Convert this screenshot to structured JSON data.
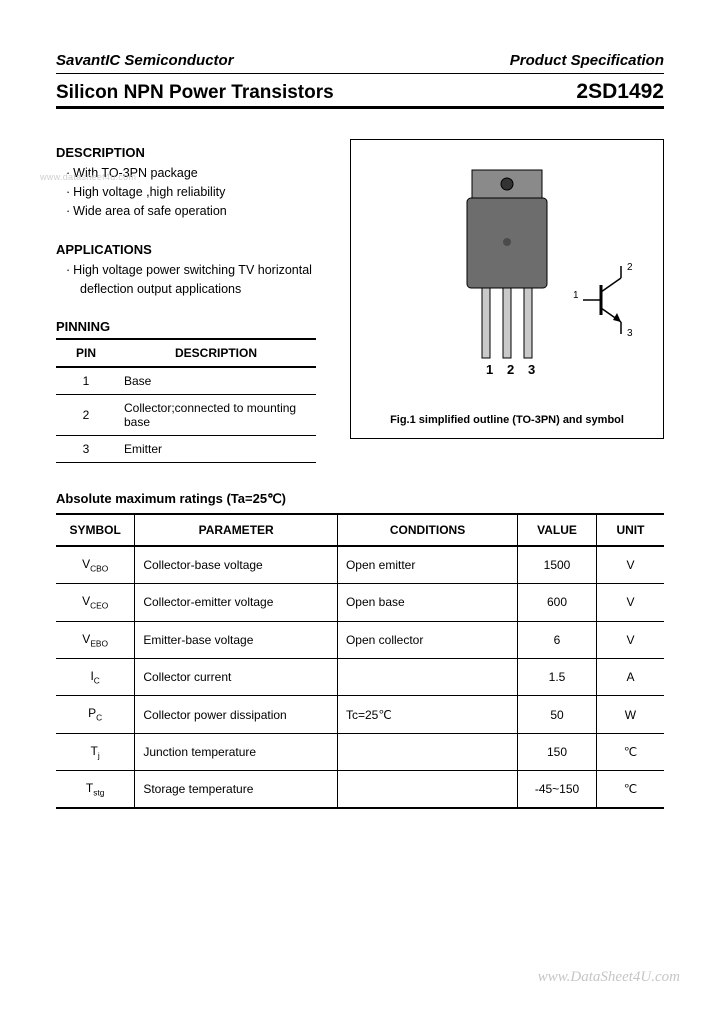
{
  "header": {
    "company": "SavantIC Semiconductor",
    "doc_type": "Product Specification",
    "title_left": "Silicon NPN Power Transistors",
    "title_right": "2SD1492"
  },
  "watermark_left": "www.datasheet4u.com",
  "watermark_br": "www.DataSheet4U.com",
  "description": {
    "heading": "DESCRIPTION",
    "items": [
      "With TO-3PN package",
      "High voltage ,high reliability",
      "Wide area of safe operation"
    ]
  },
  "applications": {
    "heading": "APPLICATIONS",
    "line1": "High voltage power switching TV horizontal",
    "line2": "deflection output applications"
  },
  "pinning": {
    "heading": "PINNING",
    "col_pin": "PIN",
    "col_desc": "DESCRIPTION",
    "rows": [
      {
        "pin": "1",
        "desc": "Base"
      },
      {
        "pin": "2",
        "desc": "Collector;connected to mounting base"
      },
      {
        "pin": "3",
        "desc": "Emitter"
      }
    ]
  },
  "figure": {
    "pin_labels": [
      "1",
      "2",
      "3"
    ],
    "sym_labels": {
      "c": "2",
      "b": "1",
      "e": "3"
    },
    "caption": "Fig.1 simplified outline (TO-3PN) and symbol",
    "colors": {
      "pkg_body": "#6d6d6d",
      "pkg_dark": "#3d3d3d",
      "lead": "#c9c9c9",
      "stroke": "#000000"
    }
  },
  "ratings": {
    "heading": "Absolute maximum ratings (Ta=25℃)",
    "columns": {
      "symbol": "SYMBOL",
      "parameter": "PARAMETER",
      "conditions": "CONDITIONS",
      "value": "VALUE",
      "unit": "UNIT"
    },
    "rows": [
      {
        "sym": "V",
        "sub": "CBO",
        "par": "Collector-base voltage",
        "con": "Open emitter",
        "val": "1500",
        "unit": "V"
      },
      {
        "sym": "V",
        "sub": "CEO",
        "par": "Collector-emitter voltage",
        "con": "Open base",
        "val": "600",
        "unit": "V"
      },
      {
        "sym": "V",
        "sub": "EBO",
        "par": "Emitter-base voltage",
        "con": "Open collector",
        "val": "6",
        "unit": "V"
      },
      {
        "sym": "I",
        "sub": "C",
        "par": "Collector current",
        "con": "",
        "val": "1.5",
        "unit": "A"
      },
      {
        "sym": "P",
        "sub": "C",
        "par": "Collector power dissipation",
        "con": "Tc=25℃",
        "val": "50",
        "unit": "W"
      },
      {
        "sym": "T",
        "sub": "j",
        "par": "Junction temperature",
        "con": "",
        "val": "150",
        "unit": "℃"
      },
      {
        "sym": "T",
        "sub": "stg",
        "par": "Storage temperature",
        "con": "",
        "val": "-45~150",
        "unit": "℃"
      }
    ]
  }
}
